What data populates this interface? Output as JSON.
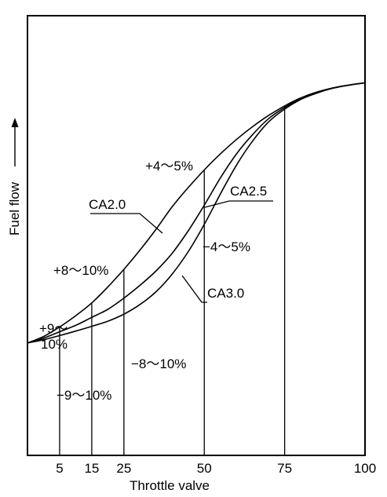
{
  "chart_data": {
    "type": "line",
    "xlabel": "Throttle valve",
    "ylabel": "Fuel flow",
    "xlim": [
      -5,
      100
    ],
    "ylim": [
      0,
      100
    ],
    "x_ticks": [
      5,
      15,
      25,
      50,
      75,
      100
    ],
    "y_ticks_shown": false,
    "grid": false,
    "series": [
      {
        "name": "CA2.0",
        "points": [
          [
            -5,
            15
          ],
          [
            0,
            17
          ],
          [
            5,
            20
          ],
          [
            10,
            23.5
          ],
          [
            15,
            27.5
          ],
          [
            20,
            32.5
          ],
          [
            25,
            38
          ],
          [
            30,
            44
          ],
          [
            35,
            50.5
          ],
          [
            40,
            57.5
          ],
          [
            45,
            63.5
          ],
          [
            50,
            69
          ],
          [
            55,
            74
          ],
          [
            60,
            78.5
          ],
          [
            65,
            82.5
          ],
          [
            70,
            86
          ],
          [
            75,
            89
          ],
          [
            80,
            91.5
          ],
          [
            85,
            93.3
          ],
          [
            90,
            94.6
          ],
          [
            95,
            95.5
          ],
          [
            100,
            96.2
          ]
        ]
      },
      {
        "name": "CA2.5",
        "points": [
          [
            -5,
            15
          ],
          [
            0,
            16.5
          ],
          [
            5,
            18.5
          ],
          [
            10,
            20.5
          ],
          [
            15,
            23
          ],
          [
            20,
            25.5
          ],
          [
            25,
            29
          ],
          [
            30,
            33
          ],
          [
            35,
            37.5
          ],
          [
            40,
            43
          ],
          [
            45,
            50
          ],
          [
            50,
            58
          ],
          [
            55,
            66.5
          ],
          [
            60,
            74
          ],
          [
            65,
            80
          ],
          [
            70,
            85
          ],
          [
            75,
            88.5
          ],
          [
            80,
            91.3
          ],
          [
            85,
            93.2
          ],
          [
            90,
            94.6
          ],
          [
            95,
            95.5
          ],
          [
            100,
            96.2
          ]
        ]
      },
      {
        "name": "CA3.0",
        "points": [
          [
            -5,
            15
          ],
          [
            0,
            16
          ],
          [
            5,
            17.3
          ],
          [
            10,
            18.7
          ],
          [
            15,
            20.2
          ],
          [
            20,
            21.8
          ],
          [
            25,
            24
          ],
          [
            30,
            27
          ],
          [
            35,
            31
          ],
          [
            40,
            36.5
          ],
          [
            45,
            43.5
          ],
          [
            50,
            52
          ],
          [
            55,
            61.5
          ],
          [
            60,
            70.5
          ],
          [
            65,
            78
          ],
          [
            70,
            84
          ],
          [
            75,
            88
          ],
          [
            80,
            91
          ],
          [
            85,
            93
          ],
          [
            90,
            94.5
          ],
          [
            95,
            95.5
          ],
          [
            100,
            96.2
          ]
        ]
      }
    ],
    "annotations": [
      {
        "text": "+4～5%",
        "x": 50
      },
      {
        "text": "CA2.0"
      },
      {
        "text": "CA2.5"
      },
      {
        "text": "−4～5%",
        "x": 50
      },
      {
        "text": "+8～10%",
        "x": 25
      },
      {
        "text": "CA3.0"
      },
      {
        "text": "+9～"
      },
      {
        "text": "10%"
      },
      {
        "text": "−8～10%",
        "x": 25
      },
      {
        "text": "−9～10%",
        "x": 15
      }
    ],
    "ylabel_arrow": "arrow-up-icon"
  }
}
